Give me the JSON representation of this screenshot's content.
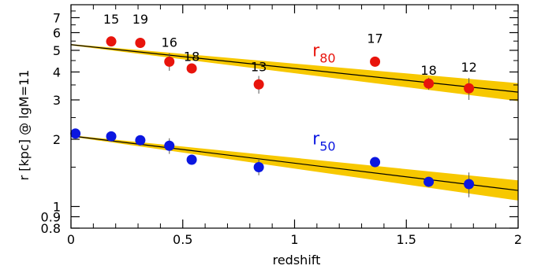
{
  "chart_data": {
    "type": "scatter",
    "xlabel": "redshift",
    "ylabel": "r [kpc] @ lgM=11",
    "xlim": [
      0,
      2
    ],
    "ylim": [
      0.8,
      8
    ],
    "yscale": "log",
    "grid": false,
    "legend": "none",
    "x_ticks": [
      {
        "v": 0,
        "label": "0"
      },
      {
        "v": 0.5,
        "label": "0.5"
      },
      {
        "v": 1,
        "label": "1"
      },
      {
        "v": 1.5,
        "label": "1.5"
      },
      {
        "v": 2,
        "label": "2"
      }
    ],
    "x_minor_step": 0.1,
    "y_ticks": [
      {
        "v": 0.8,
        "label": "0.8"
      },
      {
        "v": 0.9,
        "label": "0.9"
      },
      {
        "v": 1,
        "label": "1"
      },
      {
        "v": 2,
        "label": "2"
      },
      {
        "v": 3,
        "label": "3"
      },
      {
        "v": 4,
        "label": "4"
      },
      {
        "v": 5,
        "label": "5"
      },
      {
        "v": 6,
        "label": "6"
      },
      {
        "v": 7,
        "label": "7"
      }
    ],
    "y_minor": [
      1.5,
      2.5,
      3.5,
      4.5,
      5.5,
      6.5,
      7.5
    ],
    "series": [
      {
        "key": "r80",
        "label_main": "r",
        "label_sub": "80",
        "label_pos": [
          1.08,
          4.7
        ],
        "color": "#e8140c",
        "fit": {
          "y0": 5.3,
          "y2": 3.25,
          "band": 0.04
        },
        "points": [
          {
            "x": 0.18,
            "y": 5.48,
            "err": 0.2,
            "n": "15"
          },
          {
            "x": 0.31,
            "y": 5.4,
            "err": 0.28,
            "n": "19"
          },
          {
            "x": 0.44,
            "y": 4.45,
            "err": 0.4,
            "n": "16"
          },
          {
            "x": 0.54,
            "y": 4.15,
            "err": 0.18,
            "n": "18"
          },
          {
            "x": 0.84,
            "y": 3.52,
            "err": 0.32,
            "n": "13"
          },
          {
            "x": 1.36,
            "y": 4.45,
            "err": 0.22,
            "n": "17"
          },
          {
            "x": 1.6,
            "y": 3.55,
            "err": 0.22,
            "n": "18"
          },
          {
            "x": 1.78,
            "y": 3.38,
            "err": 0.38,
            "n": "12"
          }
        ]
      },
      {
        "key": "r50",
        "label_main": "r",
        "label_sub": "50",
        "label_pos": [
          1.08,
          1.9
        ],
        "color": "#0b17e0",
        "fit": {
          "y0": 2.07,
          "y2": 1.18,
          "band": 0.045
        },
        "points": [
          {
            "x": 0.02,
            "y": 2.12,
            "err": 0.05,
            "n": ""
          },
          {
            "x": 0.18,
            "y": 2.06,
            "err": 0.05,
            "n": ""
          },
          {
            "x": 0.31,
            "y": 1.98,
            "err": 0.05,
            "n": ""
          },
          {
            "x": 0.44,
            "y": 1.87,
            "err": 0.15,
            "n": ""
          },
          {
            "x": 0.54,
            "y": 1.62,
            "err": 0.05,
            "n": ""
          },
          {
            "x": 0.84,
            "y": 1.5,
            "err": 0.12,
            "n": ""
          },
          {
            "x": 1.36,
            "y": 1.58,
            "err": 0.05,
            "n": ""
          },
          {
            "x": 1.6,
            "y": 1.29,
            "err": 0.05,
            "n": ""
          },
          {
            "x": 1.78,
            "y": 1.26,
            "err": 0.16,
            "n": ""
          }
        ]
      }
    ]
  }
}
